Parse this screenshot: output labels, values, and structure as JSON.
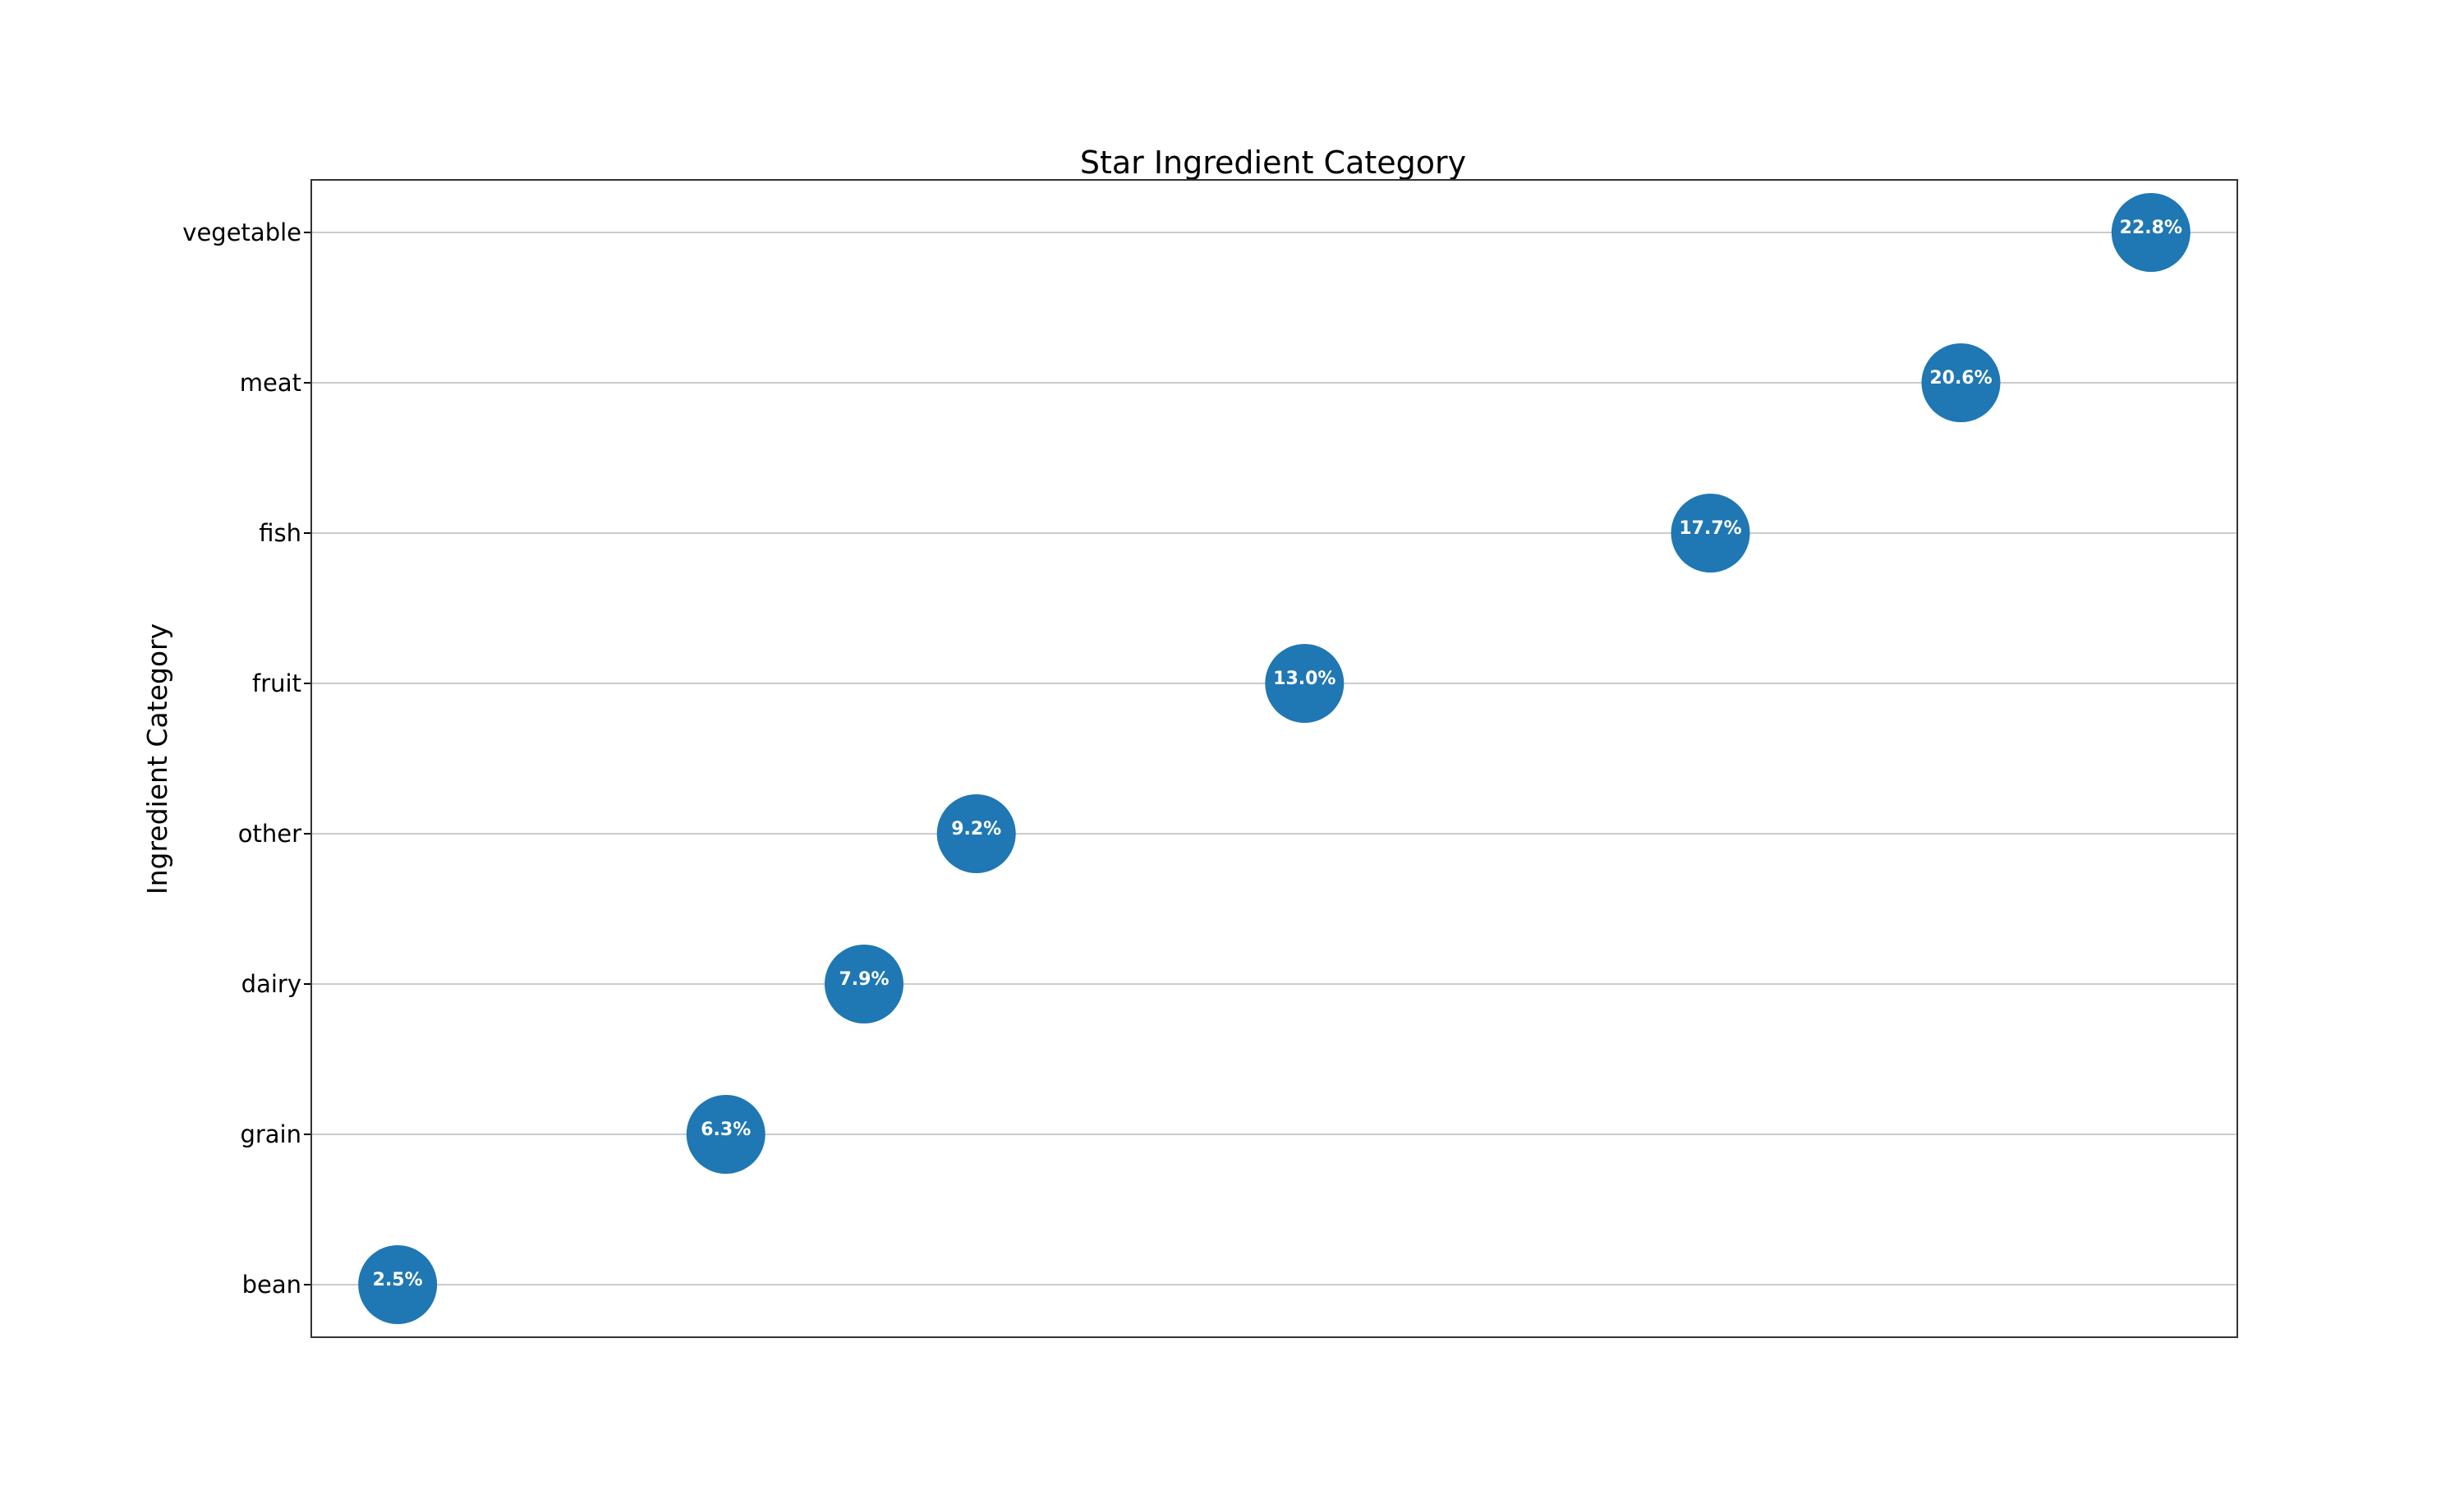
{
  "chart_data": {
    "type": "scatter",
    "title": "Star Ingredient Category",
    "xlabel": "",
    "ylabel": "Ingredient Category",
    "categories": [
      "bean",
      "grain",
      "dairy",
      "other",
      "fruit",
      "fish",
      "meat",
      "vegetable"
    ],
    "values": [
      2.5,
      6.3,
      7.9,
      9.2,
      13.0,
      17.7,
      20.6,
      22.8
    ],
    "labels": [
      "2.5%",
      "6.3%",
      "7.9%",
      "9.2%",
      "13.0%",
      "17.7%",
      "20.6%",
      "22.8%"
    ],
    "xlim": [
      1.5,
      23.8
    ],
    "x_ticks_visible": false,
    "grid": "horizontal",
    "marker_color": "#1f77b4",
    "label_color": "#ffffff"
  }
}
